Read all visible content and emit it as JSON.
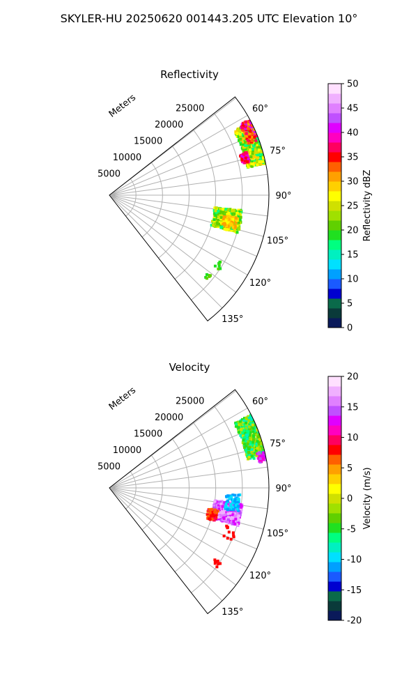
{
  "figure_title": "SKYLER-HU  20250620  001443.205 UTC Elevation 10°",
  "chart_data": [
    {
      "type": "polar-sector",
      "title": "Reflectivity",
      "radial_label": "Meters",
      "r_ticks": [
        "5000",
        "10000",
        "15000",
        "20000",
        "25000"
      ],
      "theta_ticks": [
        "60°",
        "75°",
        "90°",
        "105°",
        "120°",
        "135°"
      ],
      "theta_range_deg": [
        52,
        142
      ],
      "r_range_m": [
        0,
        30000
      ],
      "colorbar": {
        "label": "Reflectivity dBZ",
        "range": [
          0,
          50
        ],
        "ticks": [
          "0",
          "5",
          "10",
          "15",
          "20",
          "25",
          "30",
          "35",
          "40",
          "45",
          "50"
        ]
      }
    },
    {
      "type": "polar-sector",
      "title": "Velocity",
      "radial_label": "Meters",
      "r_ticks": [
        "5000",
        "10000",
        "15000",
        "20000",
        "25000"
      ],
      "theta_ticks": [
        "60°",
        "75°",
        "90°",
        "105°",
        "120°",
        "135°"
      ],
      "theta_range_deg": [
        52,
        142
      ],
      "r_range_m": [
        0,
        30000
      ],
      "colorbar": {
        "label": "Velocity (m/s)",
        "range": [
          -20,
          20
        ],
        "ticks": [
          "-20",
          "-15",
          "-10",
          "-5",
          "0",
          "5",
          "10",
          "15",
          "20"
        ]
      }
    }
  ],
  "colors": {
    "reflectivity_scale": [
      "#0a1a5a",
      "#0a3a3a",
      "#0a6a4a",
      "#0000d0",
      "#1a5aff",
      "#00a0ff",
      "#00e0ff",
      "#00f0c0",
      "#00ff80",
      "#20e020",
      "#60d000",
      "#a0e000",
      "#d0e000",
      "#ffff00",
      "#ffd000",
      "#ffa000",
      "#ff6000",
      "#ff0000",
      "#ff0060",
      "#ff00c0",
      "#e000ff",
      "#c050ff",
      "#e080ff",
      "#f0b0ff",
      "#ffe0ff"
    ],
    "velocity_scale": [
      "#0a1a5a",
      "#0a3a3a",
      "#0a6a4a",
      "#0000d0",
      "#1a5aff",
      "#00a0ff",
      "#00e0ff",
      "#00f0c0",
      "#00ff80",
      "#20e020",
      "#60d000",
      "#a0e000",
      "#d0e000",
      "#ffff00",
      "#ffd000",
      "#ffa000",
      "#ff6000",
      "#ff0000",
      "#ff0060",
      "#ff00c0",
      "#e000ff",
      "#c050ff",
      "#e080ff",
      "#f0b0ff",
      "#ffe0ff"
    ]
  }
}
